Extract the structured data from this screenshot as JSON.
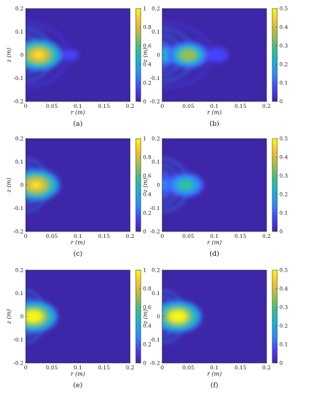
{
  "figure": {
    "colormap": [
      "#3e26a8",
      "#4743f8",
      "#2d8bfb",
      "#19b2d3",
      "#36c08f",
      "#a1be43",
      "#f5bf33",
      "#f9fb0e"
    ],
    "background_color": "#3e26a8",
    "xlabel": "r (m)",
    "ylabel": "z (m)"
  },
  "chart_data": [
    {
      "type": "heatmap",
      "caption": "(a)",
      "xlabel": "r (m)",
      "ylabel": "z (m)",
      "xlim": [
        0,
        0.2
      ],
      "ylim": [
        -0.2,
        0.2
      ],
      "xticks": [
        "0",
        "0.05",
        "0.1",
        "0.15",
        "0.2"
      ],
      "yticks": [
        "0.2",
        "0.1",
        "0",
        "-0.1",
        "-0.2"
      ],
      "colorbar": {
        "range": [
          0,
          1
        ],
        "ticks": [
          "1",
          "0.8",
          "0.6",
          "0.4",
          "0.2",
          "0"
        ]
      },
      "peak": {
        "r": 0.025,
        "z": 0,
        "value": 1
      },
      "lobes": [
        {
          "r": 0.025,
          "z": 0,
          "value": 0.9
        },
        {
          "r": 0.085,
          "z": 0,
          "value": 0.12
        }
      ],
      "arc_radii_r": [
        0.006,
        0.018,
        0.035,
        0.06
      ]
    },
    {
      "type": "heatmap",
      "caption": "(b)",
      "xlabel": "r (m)",
      "ylabel": "z (m)",
      "xlim": [
        0,
        0.2
      ],
      "ylim": [
        -0.2,
        0.2
      ],
      "xticks": [
        "0",
        "0.05",
        "0.1",
        "0.15",
        "0.2"
      ],
      "yticks": [
        "0.2",
        "0.1",
        "0",
        "-0.1",
        "-0.2"
      ],
      "colorbar": {
        "range": [
          0,
          0.5
        ],
        "ticks": [
          "0.5",
          "0.4",
          "0.3",
          "0.2",
          "0.1",
          "0"
        ]
      },
      "peak": {
        "r": 0.05,
        "z": 0,
        "value": 0.38
      },
      "lobes": [
        {
          "r": 0.05,
          "z": 0,
          "value": 0.36
        },
        {
          "r": 0.008,
          "z": 0,
          "value": 0.22
        },
        {
          "r": 0.105,
          "z": 0,
          "value": 0.1
        }
      ],
      "arc_radii_r": [
        0.01,
        0.025,
        0.045,
        0.075
      ]
    },
    {
      "type": "heatmap",
      "caption": "(c)",
      "xlabel": "r (m)",
      "ylabel": "z (m)",
      "xlim": [
        0,
        0.2
      ],
      "ylim": [
        -0.2,
        0.2
      ],
      "xticks": [
        "0",
        "0.05",
        "0.1",
        "0.15",
        "0.2"
      ],
      "yticks": [
        "0.2",
        "0.1",
        "0",
        "-0.1",
        "-0.2"
      ],
      "colorbar": {
        "range": [
          0,
          1
        ],
        "ticks": [
          "1",
          "0.8",
          "0.6",
          "0.4",
          "0.2",
          "0"
        ]
      },
      "peak": {
        "r": 0.02,
        "z": 0,
        "value": 1
      },
      "lobes": [
        {
          "r": 0.02,
          "z": 0,
          "value": 0.92
        }
      ],
      "arc_radii_r": [
        0.005,
        0.014,
        0.026
      ]
    },
    {
      "type": "heatmap",
      "caption": "(d)",
      "xlabel": "r (m)",
      "ylabel": "z (m)",
      "xlim": [
        0,
        0.2
      ],
      "ylim": [
        -0.2,
        0.2
      ],
      "xticks": [
        "0",
        "0.05",
        "0.1",
        "0.15",
        "0.2"
      ],
      "yticks": [
        "0.2",
        "0.1",
        "0",
        "-0.1",
        "-0.2"
      ],
      "colorbar": {
        "range": [
          0,
          0.5
        ],
        "ticks": [
          "0.5",
          "0.4",
          "0.3",
          "0.2",
          "0.1",
          "0"
        ]
      },
      "peak": {
        "r": 0.045,
        "z": 0,
        "value": 0.3
      },
      "lobes": [
        {
          "r": 0.045,
          "z": 0,
          "value": 0.28
        },
        {
          "r": 0.008,
          "z": 0,
          "value": 0.16
        }
      ],
      "arc_radii_r": [
        0.008,
        0.02,
        0.035
      ]
    },
    {
      "type": "heatmap",
      "caption": "(e)",
      "xlabel": "r (m)",
      "ylabel": "z (m)",
      "xlim": [
        0,
        0.2
      ],
      "ylim": [
        -0.2,
        0.2
      ],
      "xticks": [
        "0",
        "0.05",
        "0.1",
        "0.15",
        "0.2"
      ],
      "yticks": [
        "0.2",
        "0.1",
        "0",
        "-0.1",
        "-0.2"
      ],
      "colorbar": {
        "range": [
          0,
          1
        ],
        "ticks": [
          "1",
          "0.8",
          "0.6",
          "0.4",
          "0.2",
          "0"
        ]
      },
      "peak": {
        "r": 0.015,
        "z": 0,
        "value": 1
      },
      "lobes": [
        {
          "r": 0.015,
          "z": 0,
          "value": 0.95
        },
        {
          "r": 0.035,
          "z": 0,
          "value": 0.25
        }
      ],
      "arc_radii_r": [
        0.004,
        0.011,
        0.02
      ]
    },
    {
      "type": "heatmap",
      "caption": "(f)",
      "xlabel": "r (m)",
      "ylabel": "z (m)",
      "xlim": [
        0,
        0.2
      ],
      "ylim": [
        -0.2,
        0.2
      ],
      "xticks": [
        "0",
        "0.05",
        "0.1",
        "0.15",
        "0.2"
      ],
      "yticks": [
        "0.2",
        "0.1",
        "0",
        "-0.1",
        "-0.2"
      ],
      "colorbar": {
        "range": [
          0,
          0.5
        ],
        "ticks": [
          "0.5",
          "0.4",
          "0.3",
          "0.2",
          "0.1",
          "0"
        ]
      },
      "peak": {
        "r": 0.03,
        "z": 0,
        "value": 0.48
      },
      "lobes": [
        {
          "r": 0.03,
          "z": 0,
          "value": 0.47
        },
        {
          "r": 0.01,
          "z": 0,
          "value": 0.2
        }
      ],
      "arc_radii_r": [
        0.006,
        0.016,
        0.028
      ]
    }
  ]
}
